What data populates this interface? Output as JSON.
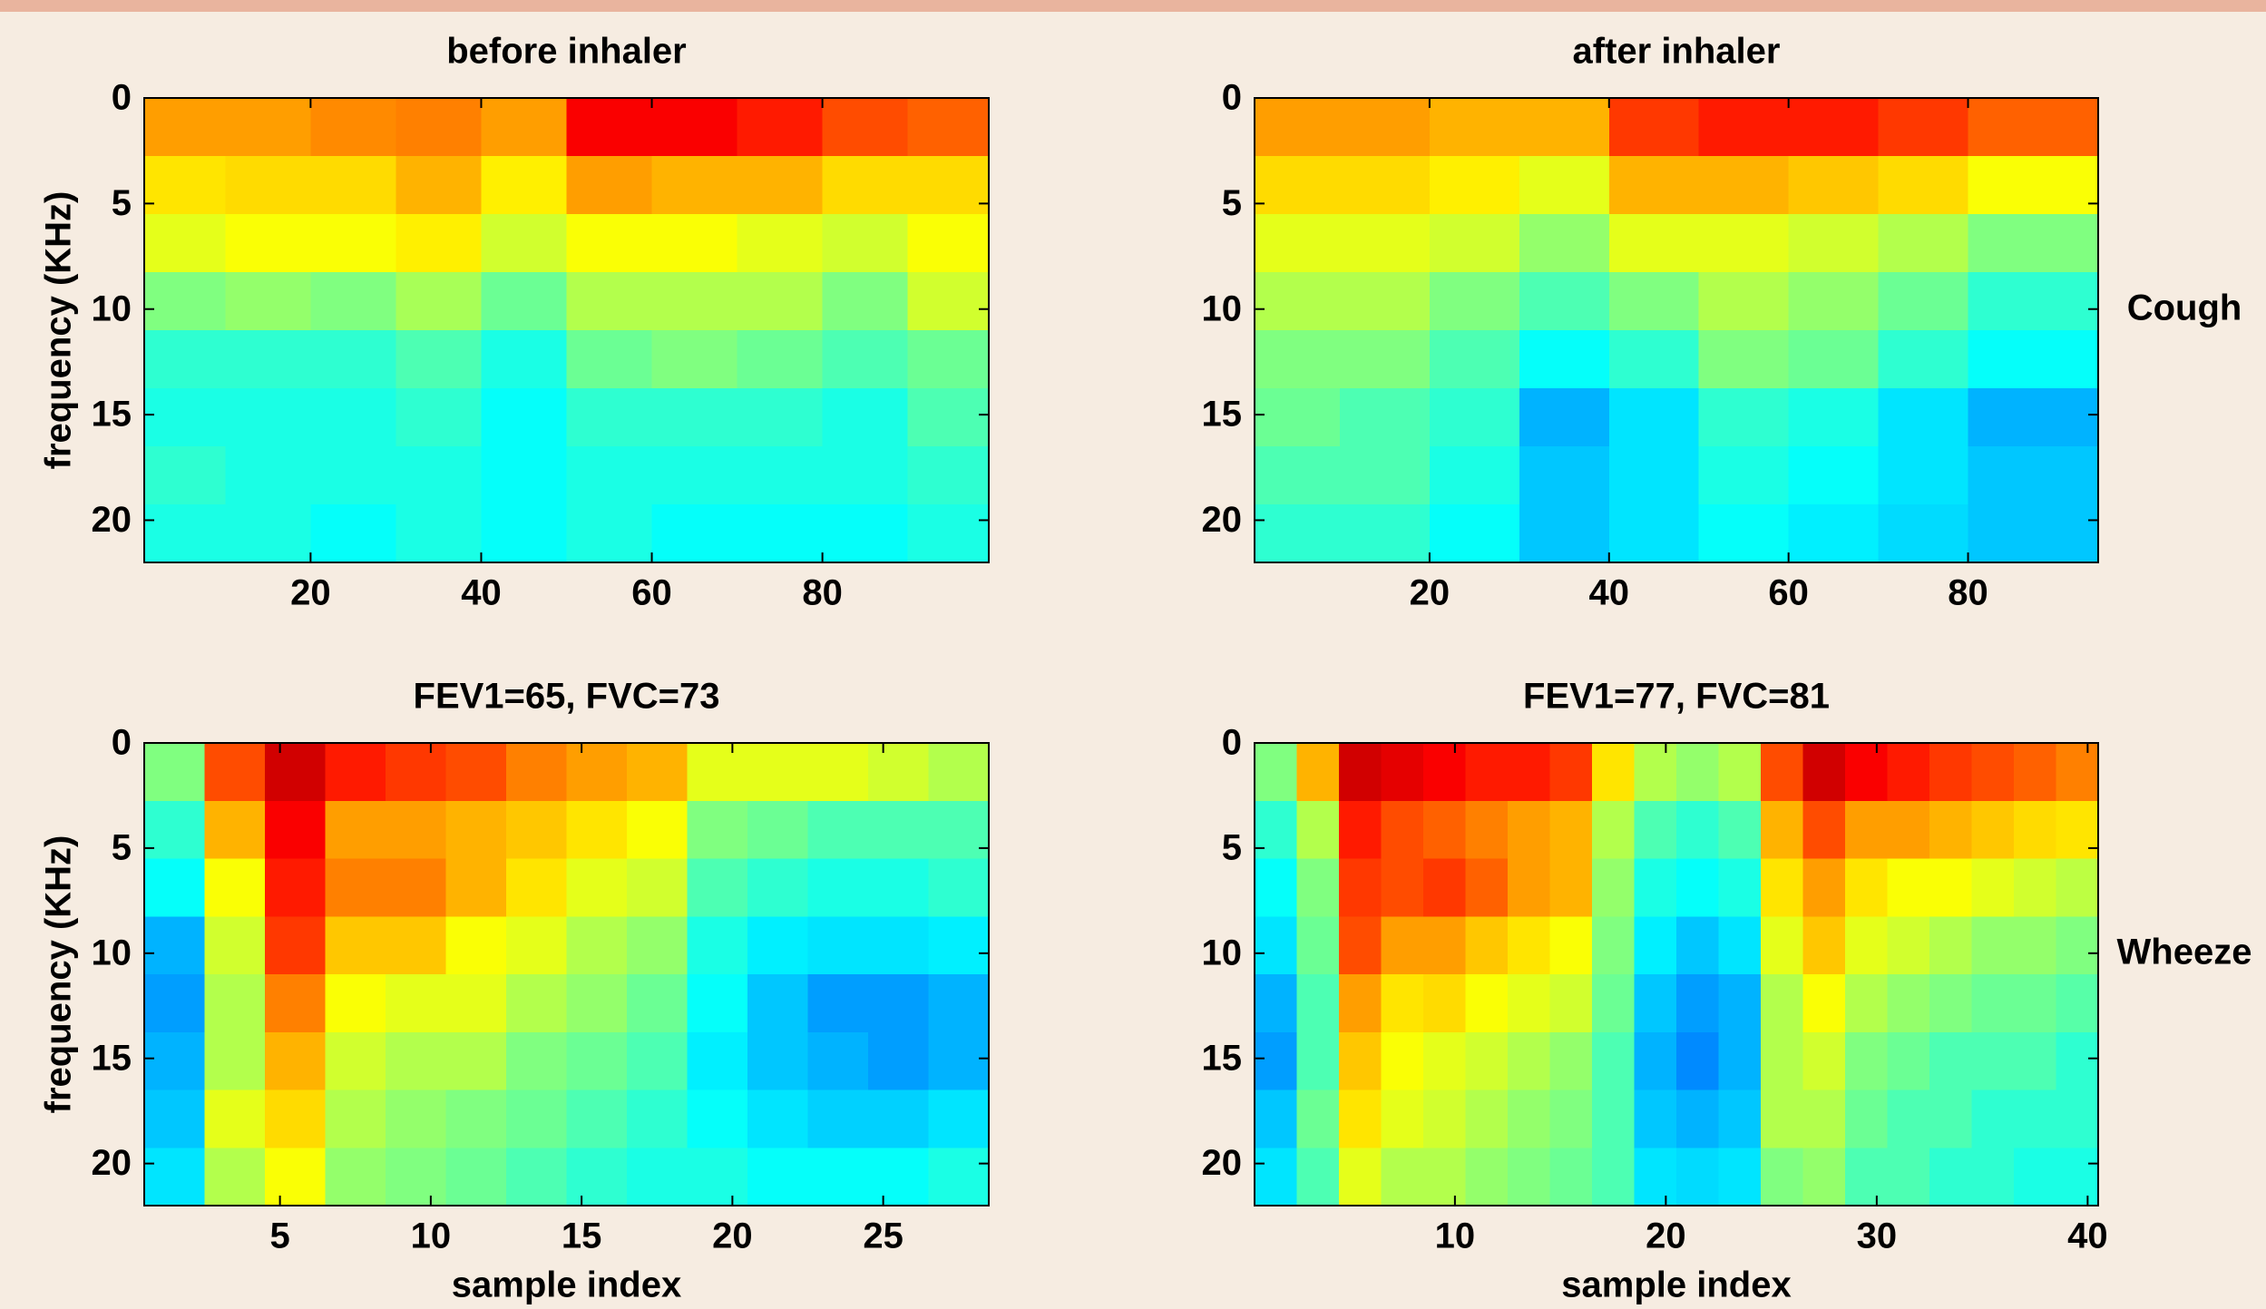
{
  "chart_data": [
    {
      "type": "heatmap",
      "title": "before inhaler",
      "y_label": "frequency (KHz)",
      "colormap": "jet",
      "xlim": [
        0.5,
        99.5
      ],
      "ylim": [
        0,
        22
      ],
      "y_inverted": true,
      "xticks": [
        20,
        40,
        60,
        80
      ],
      "yticks": [
        0,
        5,
        10,
        15,
        20
      ],
      "x": [
        5,
        15,
        25,
        35,
        45,
        55,
        65,
        75,
        85,
        95
      ],
      "y": [
        1.375,
        4.125,
        6.875,
        9.625,
        12.375,
        15.125,
        17.875,
        20.625
      ],
      "z": [
        [
          0.72,
          0.72,
          0.74,
          0.75,
          0.72,
          0.88,
          0.88,
          0.85,
          0.8,
          0.78
        ],
        [
          0.65,
          0.66,
          0.66,
          0.7,
          0.64,
          0.72,
          0.7,
          0.7,
          0.66,
          0.66
        ],
        [
          0.6,
          0.62,
          0.62,
          0.64,
          0.58,
          0.62,
          0.62,
          0.6,
          0.58,
          0.62
        ],
        [
          0.5,
          0.52,
          0.5,
          0.54,
          0.48,
          0.55,
          0.55,
          0.55,
          0.5,
          0.58
        ],
        [
          0.42,
          0.42,
          0.42,
          0.45,
          0.4,
          0.48,
          0.5,
          0.48,
          0.45,
          0.48
        ],
        [
          0.4,
          0.4,
          0.4,
          0.42,
          0.38,
          0.42,
          0.42,
          0.42,
          0.4,
          0.45
        ],
        [
          0.42,
          0.4,
          0.4,
          0.4,
          0.38,
          0.4,
          0.4,
          0.4,
          0.4,
          0.42
        ],
        [
          0.4,
          0.4,
          0.38,
          0.4,
          0.38,
          0.4,
          0.38,
          0.38,
          0.38,
          0.4
        ]
      ]
    },
    {
      "type": "heatmap",
      "title": "after inhaler",
      "row_label": "Cough",
      "colormap": "jet",
      "xlim": [
        0.5,
        94.5
      ],
      "ylim": [
        0,
        22
      ],
      "y_inverted": true,
      "xticks": [
        20,
        40,
        60,
        80
      ],
      "yticks": [
        0,
        5,
        10,
        15,
        20
      ],
      "x": [
        5,
        15,
        25,
        35,
        45,
        55,
        65,
        75,
        85
      ],
      "y": [
        1.375,
        4.125,
        6.875,
        9.625,
        12.375,
        15.125,
        17.875,
        20.625
      ],
      "z": [
        [
          0.72,
          0.72,
          0.7,
          0.7,
          0.82,
          0.85,
          0.85,
          0.82,
          0.78
        ],
        [
          0.66,
          0.66,
          0.64,
          0.6,
          0.7,
          0.7,
          0.68,
          0.66,
          0.62
        ],
        [
          0.6,
          0.6,
          0.58,
          0.52,
          0.6,
          0.6,
          0.58,
          0.55,
          0.5
        ],
        [
          0.55,
          0.55,
          0.5,
          0.45,
          0.5,
          0.55,
          0.52,
          0.48,
          0.42
        ],
        [
          0.5,
          0.5,
          0.45,
          0.38,
          0.42,
          0.5,
          0.48,
          0.42,
          0.38
        ],
        [
          0.48,
          0.45,
          0.42,
          0.3,
          0.35,
          0.42,
          0.4,
          0.35,
          0.3
        ],
        [
          0.45,
          0.45,
          0.4,
          0.32,
          0.35,
          0.4,
          0.38,
          0.35,
          0.32
        ],
        [
          0.42,
          0.42,
          0.38,
          0.32,
          0.35,
          0.38,
          0.36,
          0.34,
          0.32
        ]
      ]
    },
    {
      "type": "heatmap",
      "title": "FEV1=65, FVC=73",
      "x_label": "sample index",
      "y_label": "frequency (KHz)",
      "colormap": "jet",
      "xlim": [
        0.5,
        28.5
      ],
      "ylim": [
        0,
        22
      ],
      "y_inverted": true,
      "xticks": [
        5,
        10,
        15,
        20,
        25
      ],
      "yticks": [
        0,
        5,
        10,
        15,
        20
      ],
      "x": [
        1.5,
        3.5,
        5.5,
        7.5,
        9.5,
        11.5,
        13.5,
        15.5,
        17.5,
        19.5,
        21.5,
        23.5,
        25.5,
        27.5
      ],
      "y": [
        1.375,
        4.125,
        6.875,
        9.625,
        12.375,
        15.125,
        17.875,
        20.625
      ],
      "z": [
        [
          0.5,
          0.8,
          0.92,
          0.85,
          0.82,
          0.8,
          0.75,
          0.72,
          0.7,
          0.6,
          0.6,
          0.6,
          0.58,
          0.55
        ],
        [
          0.42,
          0.7,
          0.88,
          0.72,
          0.72,
          0.7,
          0.68,
          0.65,
          0.62,
          0.5,
          0.48,
          0.45,
          0.45,
          0.45
        ],
        [
          0.38,
          0.62,
          0.85,
          0.75,
          0.75,
          0.7,
          0.65,
          0.6,
          0.58,
          0.45,
          0.42,
          0.4,
          0.4,
          0.42
        ],
        [
          0.3,
          0.58,
          0.82,
          0.68,
          0.68,
          0.62,
          0.6,
          0.55,
          0.52,
          0.4,
          0.36,
          0.35,
          0.35,
          0.36
        ],
        [
          0.28,
          0.55,
          0.75,
          0.62,
          0.6,
          0.6,
          0.55,
          0.52,
          0.48,
          0.38,
          0.32,
          0.28,
          0.28,
          0.3
        ],
        [
          0.3,
          0.55,
          0.7,
          0.58,
          0.55,
          0.55,
          0.5,
          0.48,
          0.45,
          0.36,
          0.32,
          0.3,
          0.28,
          0.3
        ],
        [
          0.32,
          0.6,
          0.66,
          0.55,
          0.52,
          0.5,
          0.48,
          0.45,
          0.42,
          0.38,
          0.35,
          0.33,
          0.33,
          0.35
        ],
        [
          0.35,
          0.55,
          0.62,
          0.52,
          0.5,
          0.48,
          0.45,
          0.42,
          0.4,
          0.4,
          0.38,
          0.38,
          0.38,
          0.4
        ]
      ]
    },
    {
      "type": "heatmap",
      "title": "FEV1=77, FVC=81",
      "x_label": "sample index",
      "row_label": "Wheeze",
      "colormap": "jet",
      "xlim": [
        0.5,
        40.5
      ],
      "ylim": [
        0,
        22
      ],
      "y_inverted": true,
      "xticks": [
        10,
        20,
        30,
        40
      ],
      "yticks": [
        0,
        5,
        10,
        15,
        20
      ],
      "x": [
        1.5,
        3.5,
        5.5,
        7.5,
        9.5,
        11.5,
        13.5,
        15.5,
        17.5,
        19.5,
        21.5,
        23.5,
        25.5,
        27.5,
        29.5,
        31.5,
        33.5,
        35.5,
        37.5,
        39.5
      ],
      "y": [
        1.375,
        4.125,
        6.875,
        9.625,
        12.375,
        15.125,
        17.875,
        20.625
      ],
      "z": [
        [
          0.5,
          0.7,
          0.92,
          0.9,
          0.88,
          0.85,
          0.85,
          0.82,
          0.65,
          0.55,
          0.52,
          0.55,
          0.8,
          0.92,
          0.88,
          0.85,
          0.82,
          0.8,
          0.78,
          0.75
        ],
        [
          0.42,
          0.55,
          0.85,
          0.8,
          0.78,
          0.75,
          0.72,
          0.7,
          0.55,
          0.45,
          0.42,
          0.45,
          0.7,
          0.8,
          0.72,
          0.72,
          0.7,
          0.68,
          0.66,
          0.65
        ],
        [
          0.38,
          0.5,
          0.82,
          0.8,
          0.82,
          0.78,
          0.72,
          0.7,
          0.52,
          0.4,
          0.38,
          0.4,
          0.65,
          0.72,
          0.65,
          0.62,
          0.62,
          0.6,
          0.58,
          0.56
        ],
        [
          0.35,
          0.48,
          0.8,
          0.72,
          0.72,
          0.68,
          0.65,
          0.62,
          0.5,
          0.36,
          0.32,
          0.35,
          0.6,
          0.68,
          0.6,
          0.58,
          0.55,
          0.52,
          0.52,
          0.5
        ],
        [
          0.3,
          0.45,
          0.72,
          0.65,
          0.66,
          0.62,
          0.6,
          0.58,
          0.48,
          0.32,
          0.28,
          0.3,
          0.55,
          0.62,
          0.55,
          0.52,
          0.5,
          0.48,
          0.48,
          0.46
        ],
        [
          0.28,
          0.45,
          0.68,
          0.62,
          0.6,
          0.58,
          0.55,
          0.52,
          0.45,
          0.3,
          0.26,
          0.3,
          0.55,
          0.58,
          0.5,
          0.48,
          0.45,
          0.45,
          0.45,
          0.42
        ],
        [
          0.32,
          0.48,
          0.65,
          0.6,
          0.58,
          0.55,
          0.52,
          0.5,
          0.45,
          0.32,
          0.3,
          0.32,
          0.55,
          0.55,
          0.48,
          0.45,
          0.45,
          0.42,
          0.42,
          0.42
        ],
        [
          0.35,
          0.45,
          0.6,
          0.55,
          0.55,
          0.52,
          0.5,
          0.48,
          0.45,
          0.35,
          0.34,
          0.35,
          0.5,
          0.52,
          0.45,
          0.45,
          0.42,
          0.42,
          0.4,
          0.4
        ]
      ]
    }
  ]
}
